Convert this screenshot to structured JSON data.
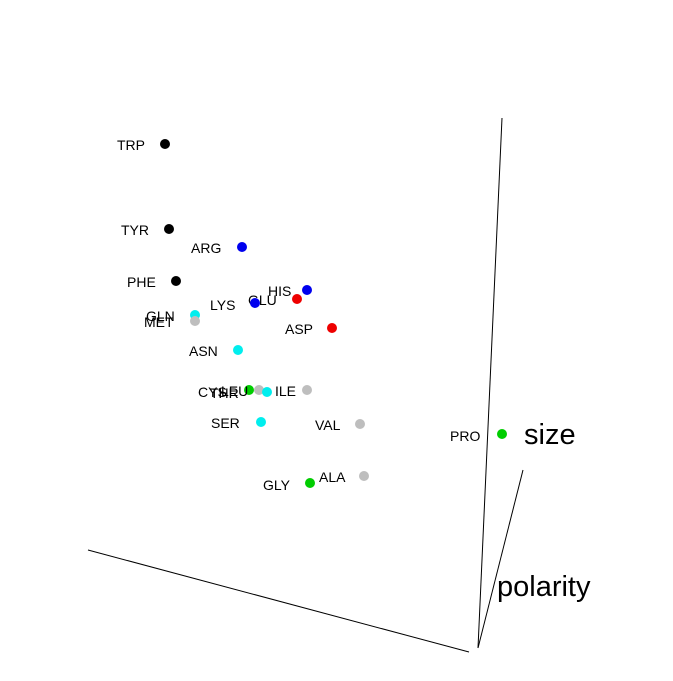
{
  "chart_data": {
    "type": "scatter",
    "title": "",
    "axes": {
      "size_label": "size",
      "polarity_label": "polarity"
    },
    "colors": {
      "black": "#000000",
      "blue": "#0000ee",
      "red": "#ee0000",
      "cyan": "#00eeee",
      "gray": "#bebebe",
      "green": "#00cd00"
    },
    "points": [
      {
        "label": "TRP",
        "color": "#000000"
      },
      {
        "label": "TYR",
        "color": "#000000"
      },
      {
        "label": "ARG",
        "color": "#0000ee"
      },
      {
        "label": "PHE",
        "color": "#000000"
      },
      {
        "label": "HIS",
        "color": "#0000ee"
      },
      {
        "label": "GLU",
        "color": "#ee0000"
      },
      {
        "label": "LYS",
        "color": "#0000ee"
      },
      {
        "label": "ASP",
        "color": "#ee0000"
      },
      {
        "label": "GLN",
        "color": "#00eeee"
      },
      {
        "label": "MET",
        "color": "#bebebe"
      },
      {
        "label": "ASN",
        "color": "#00eeee"
      },
      {
        "label": "CYS",
        "color": "#00cd00"
      },
      {
        "label": "LEU",
        "color": "#bebebe"
      },
      {
        "label": "THR",
        "color": "#00eeee"
      },
      {
        "label": "ILE",
        "color": "#bebebe"
      },
      {
        "label": "SER",
        "color": "#00eeee"
      },
      {
        "label": "VAL",
        "color": "#bebebe"
      },
      {
        "label": "PRO",
        "color": "#00cd00"
      },
      {
        "label": "ALA",
        "color": "#bebebe"
      },
      {
        "label": "GLY",
        "color": "#00cd00"
      }
    ]
  }
}
